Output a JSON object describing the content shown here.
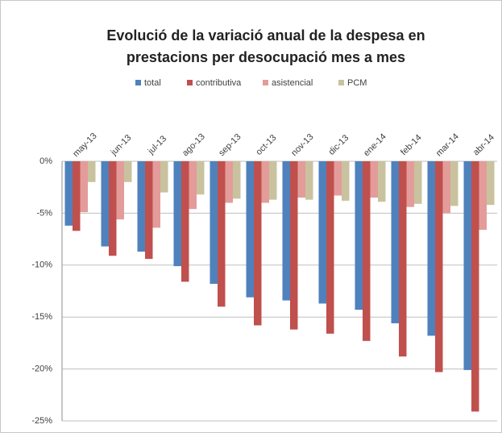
{
  "chart_data": {
    "type": "bar",
    "title": [
      "Evolució de la variació anual de la despesa en",
      "prestacions per desocupació mes a mes"
    ],
    "categories": [
      "may-13",
      "jun-13",
      "jul-13",
      "ago-13",
      "sep-13",
      "oct-13",
      "nov-13",
      "dic-13",
      "ene-14",
      "feb-14",
      "mar-14",
      "abr-14"
    ],
    "series": [
      {
        "name": "total",
        "color": "#4f81bd",
        "values": [
          -6.2,
          -8.2,
          -8.7,
          -10.1,
          -11.8,
          -13.1,
          -13.4,
          -13.7,
          -14.3,
          -15.6,
          -16.8,
          -20.1
        ]
      },
      {
        "name": "contributiva",
        "color": "#c0504d",
        "values": [
          -6.7,
          -9.1,
          -9.4,
          -11.6,
          -14.0,
          -15.8,
          -16.2,
          -16.6,
          -17.3,
          -18.8,
          -20.3,
          -24.1
        ]
      },
      {
        "name": "asistencial",
        "color": "#e39c9a",
        "values": [
          -4.9,
          -5.6,
          -6.4,
          -4.6,
          -4.0,
          -4.0,
          -3.5,
          -3.3,
          -3.5,
          -4.4,
          -5.0,
          -6.6
        ]
      },
      {
        "name": "PCM",
        "color": "#c9c29e",
        "values": [
          -2.0,
          -2.0,
          -3.0,
          -3.2,
          -3.6,
          -3.7,
          -3.7,
          -3.8,
          -3.9,
          -4.1,
          -4.3,
          -4.2
        ]
      }
    ],
    "ylim": [
      -25,
      0
    ],
    "yticks": [
      {
        "value": 0,
        "label": "0%"
      },
      {
        "value": -5,
        "label": "-5%"
      },
      {
        "value": -10,
        "label": "-10%"
      },
      {
        "value": -15,
        "label": "-15%"
      },
      {
        "value": -20,
        "label": "-20%"
      },
      {
        "value": -25,
        "label": "-25%"
      }
    ],
    "grid": true,
    "legend": "top"
  }
}
